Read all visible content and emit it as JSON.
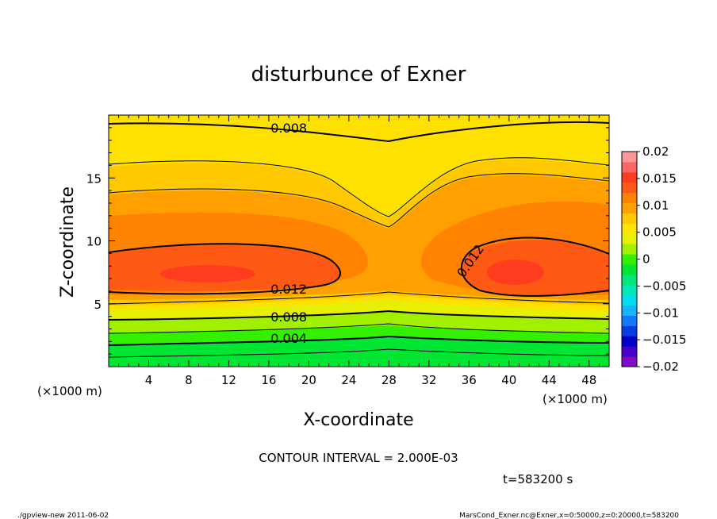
{
  "chart_data": {
    "type": "heatmap",
    "title": "disturbunce of Exner",
    "xlabel": "X-coordinate",
    "ylabel": "Z-coordinate",
    "x_unit": "(×1000 m)",
    "y_unit": "(×1000 m)",
    "xlim": [
      0,
      50
    ],
    "ylim": [
      0,
      20
    ],
    "x_ticks": [
      4,
      8,
      12,
      16,
      20,
      24,
      28,
      32,
      36,
      40,
      44,
      48
    ],
    "y_ticks": [
      5,
      10,
      15
    ],
    "contour_interval": 0.002,
    "contour_labels": [
      {
        "text": "0.008",
        "x": 18,
        "z": 18.6
      },
      {
        "text": "0.012",
        "x": 18,
        "z": 5.8
      },
      {
        "text": "0.012",
        "x": 36.5,
        "z": 8.2
      },
      {
        "text": "0.008",
        "x": 18,
        "z": 3.6
      },
      {
        "text": "0.004",
        "x": 18,
        "z": 1.9
      }
    ],
    "colorbar": {
      "ticks": [
        "0.02",
        "0.015",
        "0.01",
        "0.005",
        "0",
        "−0.005",
        "−0.01",
        "−0.015",
        "−0.02"
      ],
      "range": [
        -0.02,
        0.02
      ],
      "colors": [
        "#7f0ec8",
        "#4a00c8",
        "#0000c8",
        "#0a3ce6",
        "#1478ff",
        "#14b4ff",
        "#00dcf0",
        "#00e6b4",
        "#00e678",
        "#00e632",
        "#32f000",
        "#a0f000",
        "#e6f000",
        "#ffe600",
        "#ffc800",
        "#ffa000",
        "#ff8200",
        "#ff5a14",
        "#ff3c1e",
        "#ff6464",
        "#ff9696"
      ]
    }
  },
  "labels": {
    "contour_interval": "CONTOUR INTERVAL = 2.000E-03",
    "time": "t=583200 s",
    "footer_left": "./gpview-new   2011-06-02",
    "footer_right": "MarsCond_Exner.nc@Exner,x=0:50000,z=0:20000,t=583200"
  }
}
